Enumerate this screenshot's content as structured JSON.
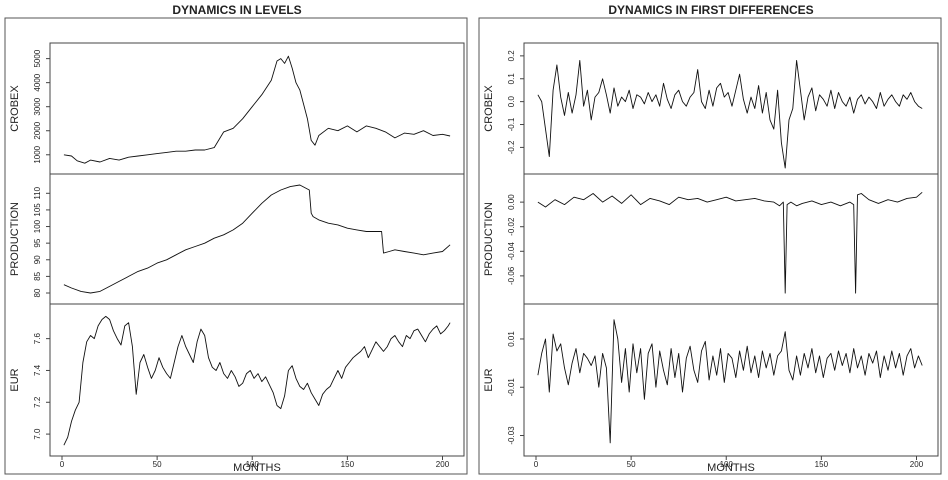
{
  "chart_data": [
    {
      "type": "line",
      "title": "DYNAMICS IN LEVELS",
      "xlabel": "MONTHS",
      "xlim": [
        0,
        205
      ],
      "xticks": [
        0,
        50,
        100,
        150,
        200
      ],
      "xtick_labels": [
        "0",
        "50",
        "100",
        "150",
        "200"
      ],
      "grid": false,
      "panels": [
        {
          "ylabel": "CROBEX",
          "ylim": [
            450,
            5400
          ],
          "yticks": [
            1000,
            2000,
            3000,
            4000,
            5000
          ],
          "ytick_labels": [
            "1000",
            "2000",
            "3000",
            "4000",
            "5000"
          ],
          "x": [
            1,
            5,
            8,
            12,
            15,
            20,
            25,
            30,
            35,
            40,
            45,
            50,
            55,
            60,
            65,
            70,
            75,
            80,
            85,
            90,
            95,
            100,
            105,
            110,
            113,
            115,
            117,
            119,
            121,
            123,
            125,
            127,
            129,
            131,
            133,
            135,
            140,
            145,
            150,
            155,
            160,
            165,
            170,
            175,
            180,
            185,
            190,
            195,
            200,
            204
          ],
          "values": [
            1000,
            950,
            750,
            650,
            780,
            700,
            850,
            780,
            900,
            950,
            1000,
            1050,
            1100,
            1150,
            1150,
            1200,
            1200,
            1300,
            1950,
            2100,
            2500,
            3000,
            3500,
            4100,
            4900,
            5000,
            4800,
            5100,
            4600,
            4000,
            3700,
            3100,
            2500,
            1600,
            1400,
            1800,
            2100,
            2000,
            2200,
            1950,
            2200,
            2100,
            1950,
            1700,
            1900,
            1850,
            2000,
            1800,
            1850,
            1780
          ]
        },
        {
          "ylabel": "PRODUCTION",
          "ylim": [
            78.5,
            114
          ],
          "yticks": [
            80,
            85,
            90,
            95,
            100,
            105,
            110
          ],
          "ytick_labels": [
            "80",
            "85",
            "90",
            "95",
            "100",
            "105",
            "110"
          ],
          "x": [
            1,
            5,
            10,
            15,
            20,
            25,
            30,
            35,
            40,
            45,
            50,
            55,
            60,
            65,
            70,
            75,
            80,
            85,
            90,
            95,
            100,
            105,
            110,
            115,
            120,
            125,
            130,
            131,
            132,
            135,
            140,
            145,
            150,
            155,
            160,
            165,
            168,
            169,
            172,
            175,
            180,
            185,
            190,
            195,
            200,
            204
          ],
          "values": [
            82.5,
            81.5,
            80.5,
            80,
            80.5,
            82,
            83.5,
            85,
            86.5,
            87.5,
            89,
            90,
            91.5,
            93,
            94,
            95,
            96.5,
            97.5,
            99,
            101,
            104,
            107,
            109.5,
            111,
            112,
            112.5,
            111,
            104,
            103,
            102,
            101,
            100.5,
            99.5,
            99,
            98.5,
            98.5,
            98.5,
            92,
            92.5,
            93,
            92.5,
            92,
            91.5,
            92,
            92.5,
            94.5
          ]
        },
        {
          "ylabel": "EUR",
          "ylim": [
            6.9,
            7.78
          ],
          "yticks": [
            7.0,
            7.2,
            7.4,
            7.6
          ],
          "ytick_labels": [
            "7.0",
            "7.2",
            "7.4",
            "7.6"
          ],
          "x": [
            1,
            3,
            5,
            7,
            9,
            11,
            13,
            15,
            17,
            19,
            21,
            23,
            25,
            27,
            29,
            31,
            33,
            35,
            37,
            39,
            41,
            43,
            45,
            47,
            49,
            51,
            53,
            55,
            57,
            59,
            61,
            63,
            65,
            67,
            69,
            71,
            73,
            75,
            77,
            79,
            81,
            83,
            85,
            87,
            89,
            91,
            93,
            95,
            97,
            99,
            101,
            103,
            105,
            107,
            109,
            111,
            113,
            115,
            117,
            119,
            121,
            123,
            125,
            127,
            129,
            131,
            133,
            135,
            137,
            139,
            141,
            143,
            145,
            147,
            149,
            151,
            153,
            155,
            157,
            159,
            161,
            163,
            165,
            167,
            169,
            171,
            173,
            175,
            177,
            179,
            181,
            183,
            185,
            187,
            189,
            191,
            193,
            195,
            197,
            199,
            201,
            203,
            204
          ],
          "values": [
            6.93,
            6.98,
            7.08,
            7.15,
            7.2,
            7.45,
            7.58,
            7.62,
            7.6,
            7.68,
            7.72,
            7.74,
            7.72,
            7.65,
            7.6,
            7.56,
            7.68,
            7.7,
            7.55,
            7.25,
            7.45,
            7.5,
            7.42,
            7.35,
            7.4,
            7.48,
            7.42,
            7.38,
            7.35,
            7.45,
            7.55,
            7.62,
            7.55,
            7.5,
            7.45,
            7.58,
            7.66,
            7.62,
            7.48,
            7.42,
            7.4,
            7.45,
            7.38,
            7.35,
            7.4,
            7.36,
            7.3,
            7.32,
            7.38,
            7.4,
            7.35,
            7.38,
            7.33,
            7.36,
            7.31,
            7.26,
            7.18,
            7.16,
            7.24,
            7.4,
            7.43,
            7.35,
            7.3,
            7.28,
            7.32,
            7.26,
            7.22,
            7.18,
            7.25,
            7.28,
            7.3,
            7.35,
            7.4,
            7.35,
            7.42,
            7.45,
            7.48,
            7.5,
            7.52,
            7.55,
            7.48,
            7.53,
            7.58,
            7.55,
            7.52,
            7.55,
            7.6,
            7.62,
            7.58,
            7.55,
            7.62,
            7.6,
            7.65,
            7.66,
            7.62,
            7.58,
            7.63,
            7.66,
            7.68,
            7.63,
            7.65,
            7.68,
            7.7
          ]
        }
      ]
    },
    {
      "type": "line",
      "title": "DYNAMICS IN FIRST DIFFERENCES",
      "xlabel": "MONTHS",
      "xlim": [
        0,
        205
      ],
      "xticks": [
        0,
        50,
        100,
        150,
        200
      ],
      "xtick_labels": [
        "0",
        "50",
        "100",
        "150",
        "200"
      ],
      "grid": false,
      "panels": [
        {
          "ylabel": "CROBEX",
          "ylim": [
            -0.29,
            0.23
          ],
          "yticks": [
            -0.2,
            -0.1,
            0.0,
            0.1,
            0.2
          ],
          "ytick_labels": [
            "-0.2",
            "-0.1",
            "0.0",
            "0.1",
            "0.2"
          ],
          "x": [
            1,
            3,
            5,
            7,
            9,
            11,
            13,
            15,
            17,
            19,
            21,
            23,
            25,
            27,
            29,
            31,
            33,
            35,
            37,
            39,
            41,
            43,
            45,
            47,
            49,
            51,
            53,
            55,
            57,
            59,
            61,
            63,
            65,
            67,
            69,
            71,
            73,
            75,
            77,
            79,
            81,
            83,
            85,
            87,
            89,
            91,
            93,
            95,
            97,
            99,
            101,
            103,
            105,
            107,
            109,
            111,
            113,
            115,
            117,
            119,
            121,
            123,
            125,
            127,
            129,
            131,
            133,
            135,
            137,
            139,
            141,
            143,
            145,
            147,
            149,
            151,
            153,
            155,
            157,
            159,
            161,
            163,
            165,
            167,
            169,
            171,
            173,
            175,
            177,
            179,
            181,
            183,
            185,
            187,
            189,
            191,
            193,
            195,
            197,
            199,
            201,
            203
          ],
          "values": [
            0.03,
            0.0,
            -0.12,
            -0.24,
            0.05,
            0.16,
            0.02,
            -0.06,
            0.04,
            -0.05,
            0.03,
            0.18,
            -0.02,
            0.05,
            -0.08,
            0.02,
            0.04,
            0.1,
            0.03,
            -0.05,
            0.06,
            -0.02,
            0.02,
            0.0,
            0.05,
            -0.03,
            0.03,
            0.02,
            -0.01,
            0.04,
            0.0,
            0.03,
            -0.02,
            0.08,
            0.01,
            -0.03,
            0.03,
            0.05,
            0.0,
            -0.02,
            0.02,
            0.04,
            0.14,
            0.0,
            -0.03,
            0.05,
            -0.02,
            0.06,
            0.08,
            0.02,
            0.04,
            -0.02,
            0.05,
            0.12,
            0.01,
            -0.05,
            0.02,
            -0.03,
            0.07,
            -0.05,
            0.04,
            -0.08,
            -0.12,
            0.05,
            -0.18,
            -0.29,
            -0.08,
            -0.03,
            0.18,
            0.05,
            -0.08,
            0.02,
            0.06,
            -0.04,
            0.03,
            0.01,
            -0.02,
            0.05,
            -0.03,
            0.04,
            0.0,
            -0.02,
            0.02,
            -0.05,
            0.01,
            0.03,
            -0.01,
            0.02,
            0.0,
            -0.03,
            0.04,
            -0.02,
            0.01,
            0.03,
            0.0,
            -0.02,
            0.03,
            0.01,
            0.04,
            0.0,
            -0.02,
            -0.03
          ]
        },
        {
          "ylabel": "PRODUCTION",
          "ylim": [
            -0.078,
            0.018
          ],
          "yticks": [
            -0.06,
            -0.04,
            -0.02,
            0.0
          ],
          "ytick_labels": [
            "-0.06",
            "-0.04",
            "-0.02",
            "0.00"
          ],
          "x": [
            1,
            5,
            10,
            15,
            20,
            25,
            30,
            35,
            40,
            45,
            50,
            55,
            60,
            65,
            70,
            75,
            80,
            85,
            90,
            95,
            100,
            105,
            110,
            115,
            120,
            125,
            128,
            130,
            131,
            132,
            134,
            137,
            140,
            145,
            150,
            155,
            160,
            165,
            167,
            168,
            169,
            171,
            175,
            180,
            185,
            190,
            195,
            200,
            203
          ],
          "values": [
            0.0,
            -0.004,
            0.002,
            -0.002,
            0.004,
            0.002,
            0.007,
            0.0,
            0.005,
            -0.001,
            0.006,
            -0.002,
            0.003,
            0.001,
            -0.002,
            0.004,
            0.002,
            0.003,
            0.0,
            0.002,
            0.004,
            0.001,
            0.002,
            0.003,
            0.001,
            0.0,
            -0.003,
            0.0,
            -0.074,
            -0.002,
            0.0,
            -0.003,
            -0.001,
            0.001,
            -0.002,
            0.0,
            -0.003,
            0.0,
            -0.002,
            -0.074,
            0.006,
            0.007,
            0.002,
            -0.001,
            0.002,
            0.0,
            0.003,
            0.004,
            0.008
          ]
        },
        {
          "ylabel": "EUR",
          "ylim": [
            -0.036,
            0.022
          ],
          "yticks": [
            -0.03,
            -0.01,
            0.01
          ],
          "ytick_labels": [
            "-0.03",
            "-0.01",
            "0.01"
          ],
          "x": [
            1,
            3,
            5,
            7,
            9,
            11,
            13,
            15,
            17,
            19,
            21,
            23,
            25,
            27,
            29,
            31,
            33,
            35,
            37,
            39,
            41,
            43,
            45,
            47,
            49,
            51,
            53,
            55,
            57,
            59,
            61,
            63,
            65,
            67,
            69,
            71,
            73,
            75,
            77,
            79,
            81,
            83,
            85,
            87,
            89,
            91,
            93,
            95,
            97,
            99,
            101,
            103,
            105,
            107,
            109,
            111,
            113,
            115,
            117,
            119,
            121,
            123,
            125,
            127,
            129,
            131,
            133,
            135,
            137,
            139,
            141,
            143,
            145,
            147,
            149,
            151,
            153,
            155,
            157,
            159,
            161,
            163,
            165,
            167,
            169,
            171,
            173,
            175,
            177,
            179,
            181,
            183,
            185,
            187,
            189,
            191,
            193,
            195,
            197,
            199,
            201,
            203
          ],
          "values": [
            -0.005,
            0.004,
            0.01,
            -0.012,
            0.012,
            0.005,
            0.008,
            -0.002,
            -0.009,
            0.0,
            0.006,
            -0.004,
            0.004,
            0.002,
            -0.001,
            0.003,
            -0.01,
            0.004,
            -0.002,
            -0.033,
            0.018,
            0.01,
            -0.008,
            0.006,
            -0.012,
            0.008,
            -0.004,
            0.006,
            -0.015,
            0.004,
            0.008,
            -0.01,
            0.005,
            -0.003,
            -0.009,
            0.006,
            -0.006,
            0.004,
            -0.012,
            0.002,
            0.007,
            -0.003,
            -0.008,
            0.005,
            0.009,
            -0.007,
            0.003,
            -0.005,
            0.006,
            -0.008,
            0.004,
            0.002,
            -0.006,
            0.005,
            -0.003,
            0.007,
            -0.004,
            0.003,
            -0.006,
            0.005,
            -0.002,
            0.004,
            -0.005,
            0.003,
            0.005,
            0.013,
            -0.003,
            -0.007,
            0.003,
            -0.005,
            0.004,
            -0.002,
            0.006,
            -0.004,
            0.003,
            -0.006,
            0.002,
            0.004,
            -0.003,
            0.005,
            -0.001,
            0.004,
            -0.004,
            0.006,
            -0.002,
            0.003,
            -0.005,
            0.004,
            0.0,
            0.005,
            -0.006,
            0.003,
            -0.003,
            0.005,
            -0.002,
            0.004,
            -0.005,
            0.003,
            0.006,
            -0.002,
            0.003,
            -0.001
          ]
        }
      ]
    }
  ]
}
